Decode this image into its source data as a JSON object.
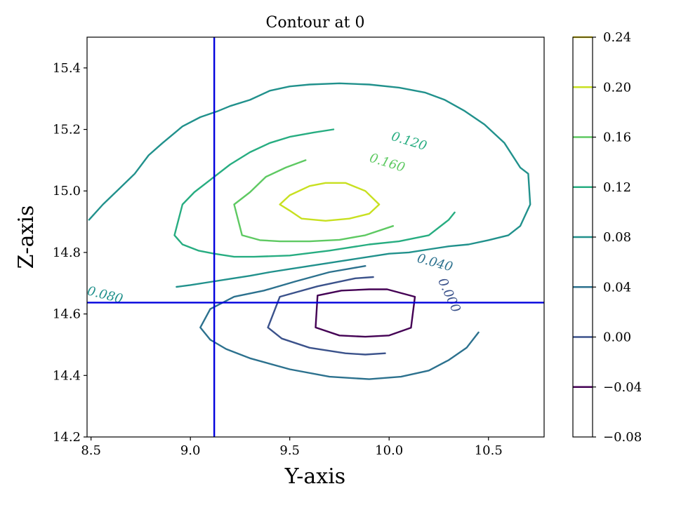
{
  "chart_data": {
    "type": "contour",
    "title": "Contour at 0",
    "xlabel": "Y-axis",
    "ylabel": "Z-axis",
    "xlim": [
      8.48,
      10.78
    ],
    "ylim": [
      14.2,
      15.5
    ],
    "x_ticks": [
      "8.5",
      "9.0",
      "9.5",
      "10.0",
      "10.5"
    ],
    "x_tick_values": [
      8.5,
      9.0,
      9.5,
      10.0,
      10.5
    ],
    "y_ticks": [
      "14.2",
      "14.4",
      "14.6",
      "14.8",
      "15.0",
      "15.2",
      "15.4"
    ],
    "y_tick_values": [
      14.2,
      14.4,
      14.6,
      14.8,
      15.0,
      15.2,
      15.4
    ],
    "crosshair": {
      "x": 9.12,
      "y": 14.637,
      "color": "#0000dd"
    },
    "colorbar": {
      "range": [
        -0.08,
        0.24
      ],
      "ticks": [
        "0.24",
        "0.20",
        "0.16",
        "0.12",
        "0.08",
        "0.04",
        "0.00",
        "−0.04",
        "−0.08"
      ],
      "tick_values": [
        0.24,
        0.2,
        0.16,
        0.12,
        0.08,
        0.04,
        0.0,
        -0.04,
        -0.08
      ],
      "lines": [
        {
          "level": -0.04,
          "color": "#440154"
        },
        {
          "level": 0.0,
          "color": "#3b528b"
        },
        {
          "level": 0.04,
          "color": "#2c718e"
        },
        {
          "level": 0.08,
          "color": "#21918c"
        },
        {
          "level": 0.12,
          "color": "#27ad81"
        },
        {
          "level": 0.16,
          "color": "#5ec962"
        },
        {
          "level": 0.2,
          "color": "#c8e020"
        },
        {
          "level": 0.24,
          "color": "#fde725"
        }
      ]
    },
    "contours": [
      {
        "level": -0.04,
        "color": "#440154",
        "points": [
          [
            9.64,
            14.66
          ],
          [
            9.76,
            14.676
          ],
          [
            9.9,
            14.68
          ],
          [
            9.99,
            14.68
          ],
          [
            10.13,
            14.656
          ],
          [
            10.11,
            14.555
          ],
          [
            10.0,
            14.53
          ],
          [
            9.88,
            14.526
          ],
          [
            9.75,
            14.53
          ],
          [
            9.63,
            14.556
          ],
          [
            9.64,
            14.66
          ]
        ]
      },
      {
        "level": 0.0,
        "color": "#3b528b",
        "points": [
          [
            9.92,
            14.72
          ],
          [
            9.83,
            14.716
          ],
          [
            9.64,
            14.69
          ],
          [
            9.45,
            14.656
          ],
          [
            9.39,
            14.556
          ],
          [
            9.46,
            14.52
          ],
          [
            9.6,
            14.49
          ],
          [
            9.78,
            14.472
          ],
          [
            9.88,
            14.468
          ],
          [
            9.98,
            14.472
          ]
        ]
      },
      {
        "level": 0.04,
        "color": "#2c718e",
        "points": [
          [
            9.88,
            14.756
          ],
          [
            9.7,
            14.736
          ],
          [
            9.53,
            14.706
          ],
          [
            9.37,
            14.676
          ],
          [
            9.22,
            14.656
          ],
          [
            9.1,
            14.616
          ],
          [
            9.05,
            14.556
          ],
          [
            9.1,
            14.516
          ],
          [
            9.18,
            14.486
          ],
          [
            9.3,
            14.456
          ],
          [
            9.5,
            14.42
          ],
          [
            9.7,
            14.396
          ],
          [
            9.9,
            14.388
          ],
          [
            10.06,
            14.396
          ],
          [
            10.2,
            14.416
          ],
          [
            10.3,
            14.45
          ],
          [
            10.39,
            14.49
          ],
          [
            10.45,
            14.54
          ]
        ]
      },
      {
        "level": 0.08,
        "color": "#21918c",
        "points": [
          [
            8.49,
            14.906
          ],
          [
            8.56,
            14.956
          ],
          [
            8.64,
            15.006
          ],
          [
            8.72,
            15.056
          ],
          [
            8.79,
            15.116
          ],
          [
            8.86,
            15.156
          ],
          [
            8.96,
            15.21
          ],
          [
            9.05,
            15.24
          ],
          [
            9.14,
            15.26
          ],
          [
            9.2,
            15.276
          ],
          [
            9.3,
            15.296
          ],
          [
            9.4,
            15.326
          ],
          [
            9.5,
            15.34
          ],
          [
            9.6,
            15.346
          ],
          [
            9.75,
            15.35
          ],
          [
            9.9,
            15.346
          ],
          [
            10.05,
            15.336
          ],
          [
            10.18,
            15.32
          ],
          [
            10.28,
            15.296
          ],
          [
            10.38,
            15.26
          ],
          [
            10.48,
            15.216
          ],
          [
            10.58,
            15.156
          ],
          [
            10.66,
            15.076
          ],
          [
            10.7,
            15.056
          ],
          [
            10.71,
            14.956
          ],
          [
            10.66,
            14.886
          ],
          [
            10.6,
            14.856
          ],
          [
            10.5,
            14.84
          ],
          [
            10.4,
            14.826
          ],
          [
            10.3,
            14.82
          ],
          [
            10.2,
            14.81
          ],
          [
            10.1,
            14.8
          ],
          [
            10.0,
            14.796
          ],
          [
            9.9,
            14.786
          ],
          [
            9.8,
            14.776
          ],
          [
            9.7,
            14.766
          ],
          [
            9.6,
            14.756
          ],
          [
            9.5,
            14.746
          ],
          [
            9.4,
            14.736
          ],
          [
            9.3,
            14.724
          ],
          [
            9.2,
            14.714
          ],
          [
            9.1,
            14.704
          ],
          [
            9.0,
            14.694
          ],
          [
            8.93,
            14.688
          ]
        ]
      },
      {
        "level": 0.12,
        "color": "#27ad81",
        "points": [
          [
            9.72,
            15.2
          ],
          [
            9.62,
            15.19
          ],
          [
            9.5,
            15.176
          ],
          [
            9.4,
            15.156
          ],
          [
            9.3,
            15.126
          ],
          [
            9.2,
            15.086
          ],
          [
            9.1,
            15.036
          ],
          [
            9.02,
            14.996
          ],
          [
            8.96,
            14.956
          ],
          [
            8.92,
            14.856
          ],
          [
            8.96,
            14.826
          ],
          [
            9.04,
            14.806
          ],
          [
            9.12,
            14.796
          ],
          [
            9.22,
            14.786
          ],
          [
            9.32,
            14.786
          ],
          [
            9.5,
            14.79
          ],
          [
            9.7,
            14.806
          ],
          [
            9.9,
            14.826
          ],
          [
            10.05,
            14.836
          ],
          [
            10.2,
            14.856
          ],
          [
            10.3,
            14.906
          ],
          [
            10.33,
            14.93
          ]
        ]
      },
      {
        "level": 0.16,
        "color": "#5ec962",
        "points": [
          [
            9.58,
            15.1
          ],
          [
            9.48,
            15.076
          ],
          [
            9.38,
            15.046
          ],
          [
            9.3,
            14.996
          ],
          [
            9.22,
            14.956
          ],
          [
            9.26,
            14.856
          ],
          [
            9.35,
            14.84
          ],
          [
            9.45,
            14.836
          ],
          [
            9.6,
            14.836
          ],
          [
            9.75,
            14.841
          ],
          [
            9.88,
            14.856
          ],
          [
            10.02,
            14.886
          ]
        ]
      },
      {
        "level": 0.2,
        "color": "#c8e020",
        "points": [
          [
            9.45,
            14.956
          ],
          [
            9.5,
            14.986
          ],
          [
            9.6,
            15.016
          ],
          [
            9.68,
            15.026
          ],
          [
            9.78,
            15.026
          ],
          [
            9.88,
            15.0
          ],
          [
            9.95,
            14.956
          ],
          [
            9.9,
            14.926
          ],
          [
            9.8,
            14.91
          ],
          [
            9.68,
            14.903
          ],
          [
            9.56,
            14.91
          ],
          [
            9.5,
            14.936
          ],
          [
            9.45,
            14.956
          ]
        ]
      }
    ],
    "contour_labels": [
      {
        "text": "0.120",
        "x": 10.1,
        "y": 15.16,
        "angle": 17,
        "color": "#27ad81"
      },
      {
        "text": "0.160",
        "x": 9.99,
        "y": 15.09,
        "angle": 17,
        "color": "#5ec962"
      },
      {
        "text": "0.040",
        "x": 10.23,
        "y": 14.765,
        "angle": 15,
        "color": "#2c718e"
      },
      {
        "text": "0.000",
        "x": 10.3,
        "y": 14.66,
        "angle": 65,
        "color": "#3b528b"
      },
      {
        "text": "0.080",
        "x": 8.57,
        "y": 14.66,
        "angle": 14,
        "color": "#21918c"
      }
    ]
  }
}
